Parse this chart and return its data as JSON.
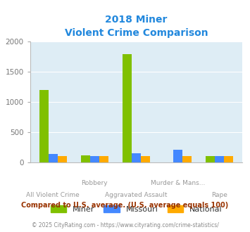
{
  "title_line1": "2018 Miner",
  "title_line2": "Violent Crime Comparison",
  "category_labels": [
    "All Violent Crime",
    "Robbery",
    "Aggravated Assault",
    "Murder & Mans...",
    "Rape"
  ],
  "series": {
    "Miner": [
      1200,
      120,
      1800,
      0,
      100
    ],
    "Missouri": [
      140,
      100,
      150,
      210,
      110
    ],
    "National": [
      100,
      100,
      100,
      100,
      100
    ]
  },
  "colors": {
    "Miner": "#80c000",
    "Missouri": "#4488ff",
    "National": "#ffaa00"
  },
  "ylim": [
    0,
    2000
  ],
  "yticks": [
    0,
    500,
    1000,
    1500,
    2000
  ],
  "figure_bg": "#ffffff",
  "plot_bg_color": "#deedf5",
  "title_color": "#2288dd",
  "footer_text": "Compared to U.S. average. (U.S. average equals 100)",
  "footer_color": "#993300",
  "copyright_text": "© 2025 CityRating.com - https://www.cityrating.com/crime-statistics/",
  "copyright_color": "#888888",
  "legend_labels": [
    "Miner",
    "Missouri",
    "National"
  ],
  "bar_width": 0.22,
  "xtick_top": [
    "",
    "Robbery",
    "",
    "Murder & Mans...",
    ""
  ],
  "xtick_bottom": [
    "All Violent Crime",
    "",
    "Aggravated Assault",
    "",
    "Rape"
  ]
}
